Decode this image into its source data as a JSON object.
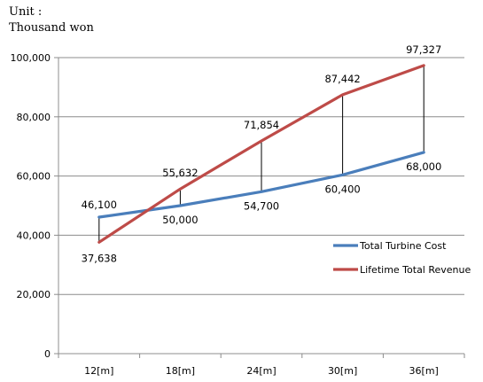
{
  "unit_label": {
    "line1": "Unit :",
    "line2": "Thousand won"
  },
  "chart_data": {
    "type": "line",
    "title": "",
    "xlabel": "",
    "ylabel": "",
    "categories": [
      "12[m]",
      "18[m]",
      "24[m]",
      "30[m]",
      "36[m]"
    ],
    "ylim": [
      0,
      100000
    ],
    "yticks": [
      0,
      20000,
      40000,
      60000,
      80000,
      100000
    ],
    "ytick_labels": [
      "0",
      "20,000",
      "40,000",
      "60,000",
      "80,000",
      "100,000"
    ],
    "grid": true,
    "legend_position": "right",
    "series": [
      {
        "name": "Total Turbine Cost",
        "color": "#4a7ebb",
        "values": [
          46100,
          50000,
          54700,
          60400,
          68000
        ],
        "labels": [
          "46,100",
          "50,000",
          "54,700",
          "60,400",
          "68,000"
        ]
      },
      {
        "name": "Lifetime Total Revenue",
        "color": "#be4b48",
        "values": [
          37638,
          55632,
          71854,
          87442,
          97327
        ],
        "labels": [
          "37,638",
          "55,632",
          "71,854",
          "87,442",
          "97,327"
        ]
      }
    ]
  }
}
